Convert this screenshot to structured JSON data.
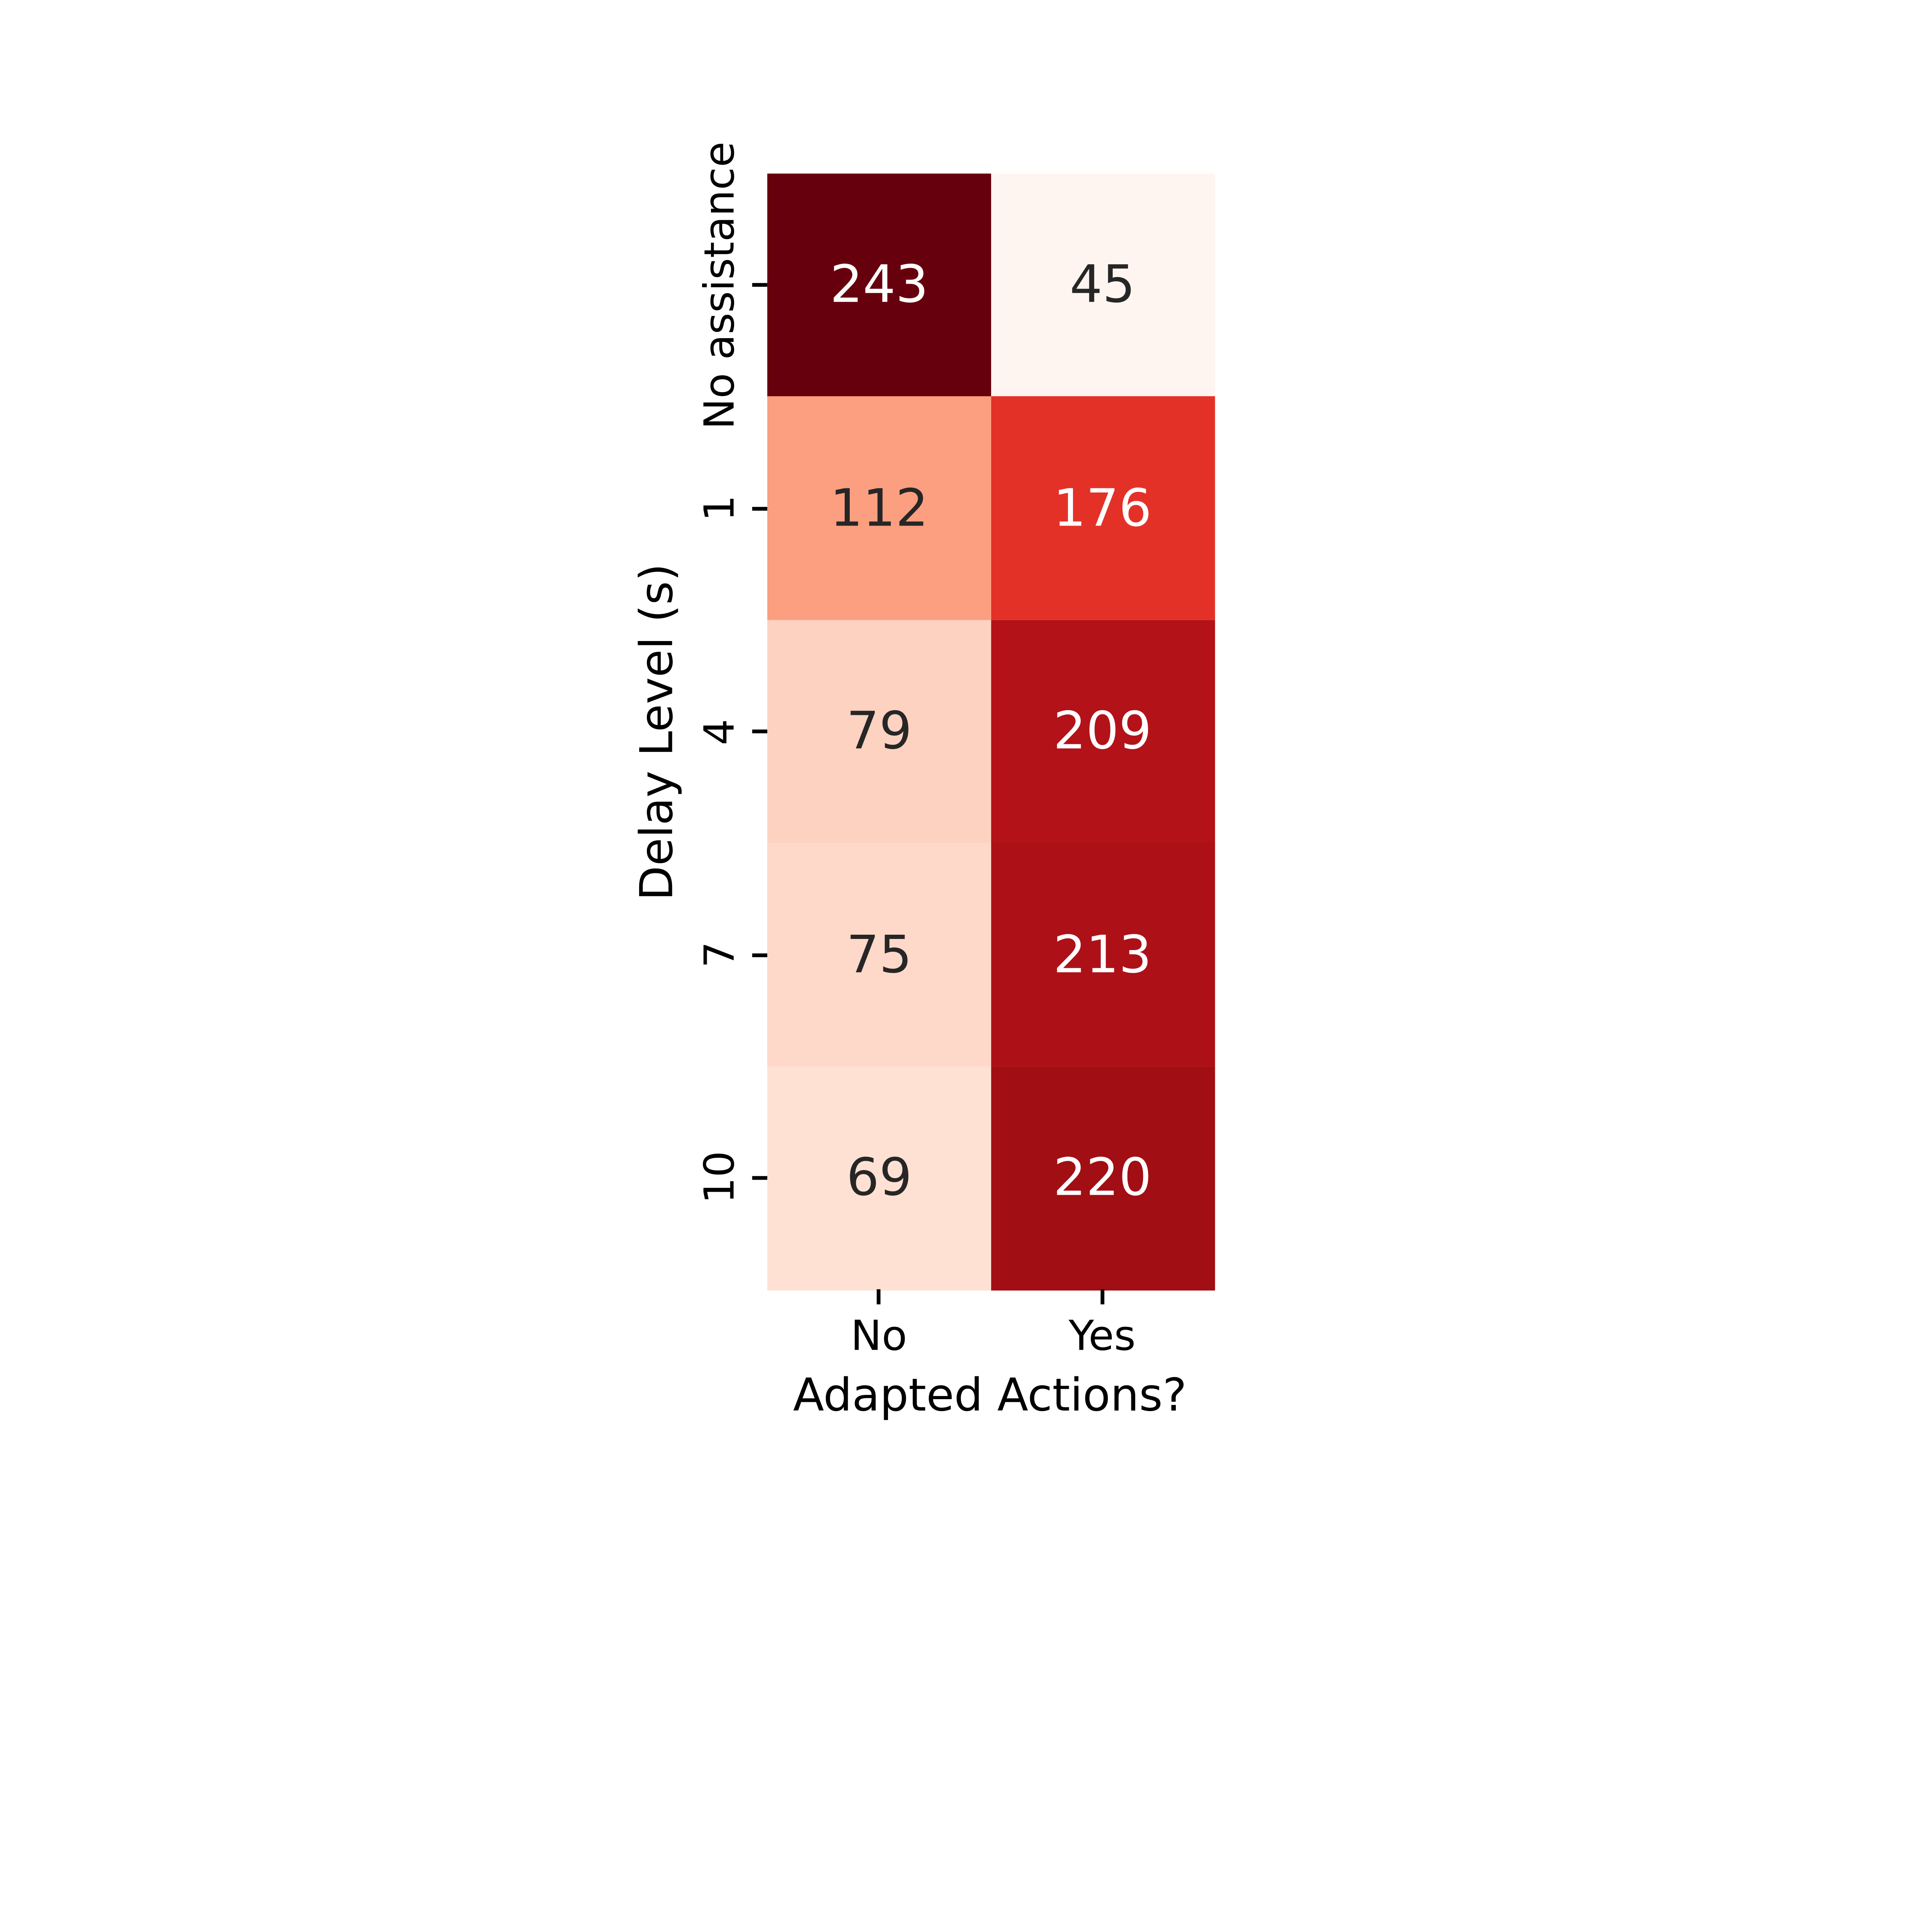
{
  "figure": {
    "background": "#ffffff",
    "tick_color": "#000000",
    "text_color": "#000000"
  },
  "chart_data": {
    "type": "heatmap",
    "title": "",
    "xlabel": "Adapted Actions?",
    "ylabel": "Delay Level (s)",
    "x_ticklabels": [
      "No",
      "Yes"
    ],
    "y_ticklabels": [
      "No assistance",
      "1",
      "4",
      "7",
      "10"
    ],
    "colormap": "Reds",
    "vmin": 45,
    "vmax": 243,
    "grid": false,
    "legend": "none",
    "annotated": true,
    "rows": [
      {
        "y": "No assistance",
        "values": [
          243,
          45
        ],
        "colors": [
          "#67000d",
          "#fff5f0"
        ],
        "text_colors": [
          "#ffffff",
          "#262626"
        ]
      },
      {
        "y": "1",
        "values": [
          112,
          176
        ],
        "colors": [
          "#fc9e80",
          "#e43128"
        ],
        "text_colors": [
          "#262626",
          "#ffffff"
        ]
      },
      {
        "y": "4",
        "values": [
          79,
          209
        ],
        "colors": [
          "#fdd2c0",
          "#b31218"
        ],
        "text_colors": [
          "#262626",
          "#ffffff"
        ]
      },
      {
        "y": "7",
        "values": [
          75,
          213
        ],
        "colors": [
          "#fed8c8",
          "#ad1117"
        ],
        "text_colors": [
          "#262626",
          "#ffffff"
        ]
      },
      {
        "y": "10",
        "values": [
          69,
          220
        ],
        "colors": [
          "#fee1d3",
          "#a10e14"
        ],
        "text_colors": [
          "#262626",
          "#ffffff"
        ]
      }
    ]
  }
}
